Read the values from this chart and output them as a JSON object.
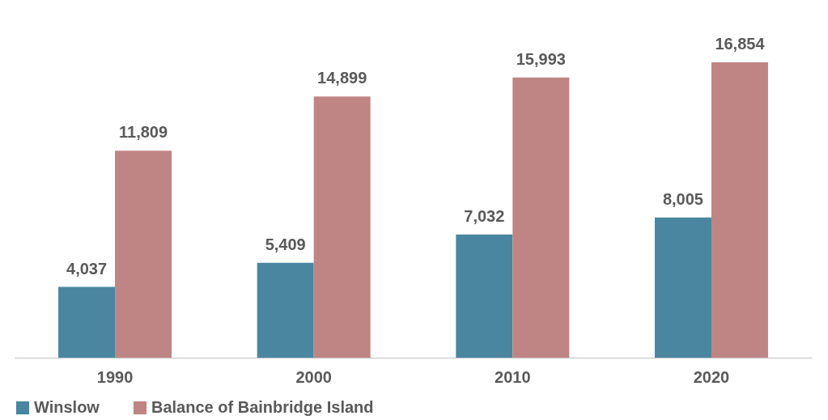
{
  "chart_data": {
    "type": "bar",
    "categories": [
      "1990",
      "2000",
      "2010",
      "2020"
    ],
    "series": [
      {
        "name": "Winslow",
        "color": "#4a86a0",
        "values": [
          4037,
          5409,
          7032,
          8005
        ],
        "value_labels": [
          "4,037",
          "5,409",
          "7,032",
          "8,005"
        ]
      },
      {
        "name": "Balance of Bainbridge Island",
        "color": "#bf8585",
        "values": [
          11809,
          14899,
          15993,
          16854
        ],
        "value_labels": [
          "11,809",
          "14,899",
          "15,993",
          "16,854"
        ]
      }
    ],
    "legend": "bottom",
    "grid": false
  }
}
